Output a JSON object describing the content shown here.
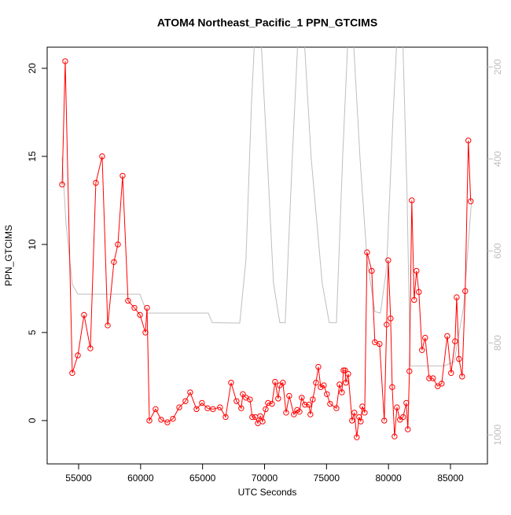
{
  "chart_data": {
    "type": "line",
    "title": "ATOM4 Northeast_Pacific_1 PPN_GTCIMS",
    "x_label": "UTC Seconds",
    "y_label": "PPN_GTCIMS",
    "xlim": [
      52464,
      87980
    ],
    "xticks": [
      55000,
      60000,
      65000,
      70000,
      75000,
      80000,
      85000
    ],
    "ylim": [
      -2.46,
      21.2
    ],
    "yticks": [
      0,
      5,
      10,
      15,
      20
    ],
    "y2lim": [
      1063,
      157
    ],
    "y2ticks": [
      200,
      400,
      600,
      800,
      1000
    ],
    "series": [
      {
        "color": "#bebebe",
        "axis": "y2",
        "x": [
          53670,
          53990,
          54490,
          54940,
          59950,
          60520,
          65460,
          65780,
          68000,
          68500,
          68950,
          69260,
          69650,
          70220,
          70720,
          71230,
          71670,
          72240,
          72750,
          73130,
          73760,
          74650,
          75220,
          75800,
          76300,
          76750,
          77130,
          77700,
          78270,
          78900,
          79350,
          79850,
          80360,
          80740,
          81120,
          81500,
          81750,
          84480,
          85300,
          86060,
          86700
        ],
        "values": [
          397,
          542,
          673,
          694,
          694,
          735,
          735,
          756,
          757,
          619,
          277,
          106,
          106,
          397,
          670,
          756,
          756,
          397,
          106,
          106,
          397,
          670,
          756,
          756,
          397,
          123,
          123,
          397,
          619,
          732,
          735,
          636,
          311,
          106,
          106,
          482,
          850,
          850,
          841,
          721,
          490
        ]
      },
      {
        "color": "#ff0000",
        "markers": true,
        "x": [
          53670,
          53920,
          54490,
          54940,
          55440,
          55950,
          56390,
          56900,
          57350,
          57850,
          58170,
          58550,
          58990,
          59500,
          59950,
          60390,
          60520,
          60710,
          61210,
          61660,
          62160,
          62610,
          63120,
          63620,
          64000,
          64510,
          64950,
          65400,
          65840,
          66410,
          66860,
          67300,
          67740,
          68120,
          68250,
          68500,
          68820,
          69010,
          69260,
          69460,
          69650,
          69840,
          70090,
          70280,
          70600,
          70850,
          71100,
          71230,
          71480,
          71740,
          71990,
          72370,
          72630,
          72820,
          73000,
          73260,
          73580,
          73700,
          73890,
          74150,
          74340,
          74530,
          74780,
          75030,
          75290,
          75800,
          76050,
          76240,
          76370,
          76500,
          76560,
          76750,
          77060,
          77250,
          77440,
          77630,
          77760,
          77890,
          78080,
          78270,
          78650,
          78900,
          79280,
          79660,
          79850,
          79980,
          80170,
          80300,
          80490,
          80680,
          80930,
          81180,
          81440,
          81560,
          81690,
          81880,
          82070,
          82260,
          82450,
          82700,
          82960,
          83280,
          83590,
          83970,
          84290,
          84740,
          85050,
          85370,
          85500,
          85690,
          85940,
          86190,
          86440,
          86630
        ],
        "values": [
          13.4,
          20.4,
          2.7,
          3.7,
          6.0,
          4.1,
          13.5,
          15.0,
          5.4,
          9.0,
          10.0,
          13.9,
          6.8,
          6.4,
          6.0,
          5.0,
          6.4,
          0.0,
          0.65,
          0.05,
          -0.1,
          0.1,
          0.75,
          1.1,
          1.6,
          0.65,
          1.0,
          0.7,
          0.65,
          0.75,
          0.2,
          2.15,
          1.1,
          0.7,
          1.5,
          1.3,
          1.2,
          0.2,
          0.2,
          -0.15,
          0.25,
          -0.05,
          0.65,
          1.0,
          0.95,
          2.2,
          1.25,
          2.0,
          2.15,
          0.45,
          1.4,
          0.35,
          0.6,
          0.5,
          1.3,
          0.9,
          0.9,
          0.35,
          1.2,
          2.15,
          3.05,
          1.9,
          2.0,
          1.5,
          0.95,
          0.7,
          2.05,
          1.6,
          2.85,
          2.85,
          2.15,
          2.65,
          0.0,
          0.45,
          -0.95,
          0.2,
          -0.05,
          0.8,
          0.45,
          9.55,
          8.5,
          4.45,
          4.35,
          0.0,
          5.45,
          9.1,
          5.8,
          1.9,
          -0.9,
          0.75,
          0.05,
          0.2,
          1.0,
          -0.5,
          2.8,
          12.5,
          6.85,
          8.5,
          7.3,
          4.0,
          4.7,
          2.4,
          2.4,
          1.95,
          2.1,
          4.8,
          2.7,
          4.5,
          7.0,
          3.5,
          2.5,
          7.35,
          15.9,
          12.45
        ]
      }
    ]
  }
}
